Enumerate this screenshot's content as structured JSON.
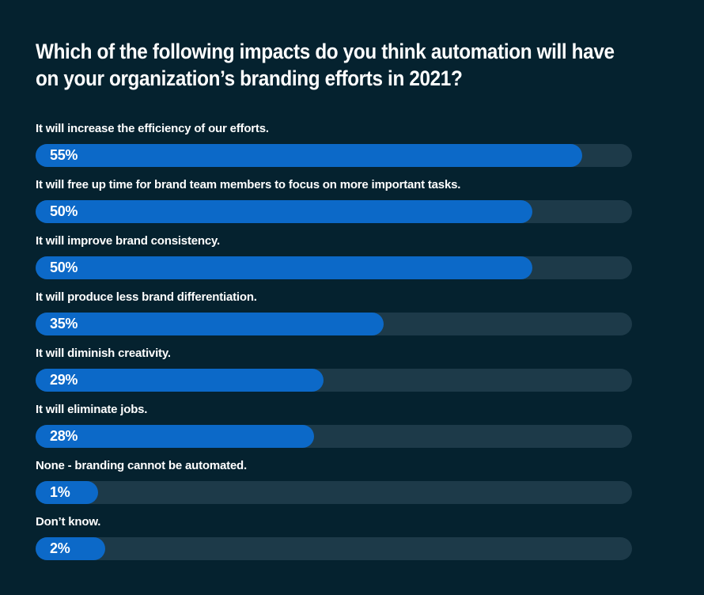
{
  "title": {
    "line1": "Which of the following impacts do you think automation will have",
    "line2": "on your organization’s branding efforts in 2021?"
  },
  "chart_data": {
    "type": "bar",
    "orientation": "horizontal",
    "title": "Which of the following impacts do you think automation will have on your organization’s branding efforts in 2021?",
    "categories": [
      "It will increase the efficiency of our efforts.",
      "It will free up time for brand team members to focus on more important tasks.",
      "It will improve brand consistency.",
      "It will produce less brand differentiation.",
      "It will diminish creativity.",
      "It will eliminate jobs.",
      "None - branding cannot be automated.",
      "Don’t know."
    ],
    "values": [
      55,
      50,
      50,
      35,
      29,
      28,
      1,
      2
    ],
    "value_labels": [
      "55%",
      "50%",
      "50%",
      "35%",
      "29%",
      "28%",
      "1%",
      "2%"
    ],
    "xlim": [
      0,
      60
    ],
    "grid": false,
    "legend": "none",
    "colors": {
      "background": "#05222f",
      "bar_fill": "#0c69c8",
      "bar_track": "#1d3a49",
      "text": "#ffffff"
    }
  }
}
